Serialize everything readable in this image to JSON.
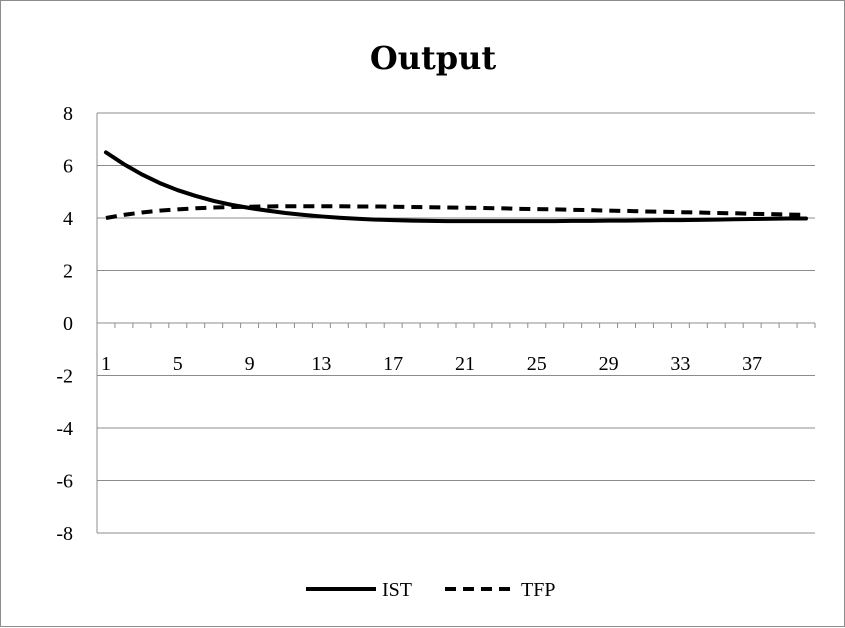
{
  "chart_data": {
    "type": "line",
    "title": "Output",
    "xlabel": "",
    "ylabel": "",
    "ylim": [
      -8,
      8
    ],
    "yticks": [
      8,
      6,
      4,
      2,
      0,
      -2,
      -4,
      -6,
      -8
    ],
    "xtick_labels": [
      "1",
      "5",
      "9",
      "13",
      "17",
      "21",
      "25",
      "29",
      "33",
      "37"
    ],
    "x_count": 40,
    "grid": "horizontal",
    "legend_position": "bottom",
    "series": [
      {
        "name": "IST",
        "style": "solid",
        "color": "#000000",
        "values": [
          6.5,
          6.05,
          5.66,
          5.33,
          5.06,
          4.84,
          4.65,
          4.5,
          4.38,
          4.28,
          4.19,
          4.12,
          4.06,
          4.01,
          3.97,
          3.94,
          3.92,
          3.9,
          3.89,
          3.88,
          3.88,
          3.88,
          3.88,
          3.88,
          3.88,
          3.88,
          3.89,
          3.89,
          3.9,
          3.9,
          3.91,
          3.92,
          3.92,
          3.93,
          3.94,
          3.95,
          3.96,
          3.97,
          3.98,
          3.98
        ]
      },
      {
        "name": "TFP",
        "style": "dashed",
        "color": "#000000",
        "values": [
          4.0,
          4.12,
          4.21,
          4.28,
          4.33,
          4.37,
          4.4,
          4.42,
          4.43,
          4.44,
          4.45,
          4.45,
          4.45,
          4.45,
          4.44,
          4.44,
          4.43,
          4.42,
          4.41,
          4.4,
          4.39,
          4.38,
          4.37,
          4.35,
          4.34,
          4.33,
          4.31,
          4.3,
          4.28,
          4.27,
          4.25,
          4.24,
          4.22,
          4.21,
          4.19,
          4.18,
          4.16,
          4.15,
          4.13,
          4.12
        ]
      }
    ]
  }
}
